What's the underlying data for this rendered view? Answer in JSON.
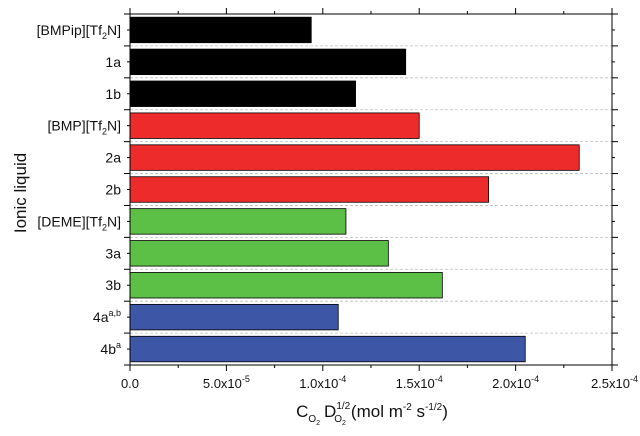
{
  "chart_data": {
    "type": "bar",
    "orientation": "horizontal",
    "categories": [
      {
        "base": "[BMPip][Tf",
        "sub": "2",
        "rest": "N]",
        "sup": ""
      },
      {
        "base": "1a",
        "sub": "",
        "rest": "",
        "sup": ""
      },
      {
        "base": "1b",
        "sub": "",
        "rest": "",
        "sup": ""
      },
      {
        "base": "[BMP][Tf",
        "sub": "2",
        "rest": "N]",
        "sup": ""
      },
      {
        "base": "2a",
        "sub": "",
        "rest": "",
        "sup": ""
      },
      {
        "base": "2b",
        "sub": "",
        "rest": "",
        "sup": ""
      },
      {
        "base": "[DEME][Tf",
        "sub": "2",
        "rest": "N]",
        "sup": ""
      },
      {
        "base": "3a",
        "sub": "",
        "rest": "",
        "sup": ""
      },
      {
        "base": "3b",
        "sub": "",
        "rest": "",
        "sup": ""
      },
      {
        "base": "4a",
        "sub": "",
        "rest": "",
        "sup": "a,b"
      },
      {
        "base": "4b",
        "sub": "",
        "rest": "",
        "sup": "a"
      }
    ],
    "values": [
      9.4e-05,
      0.000143,
      0.000117,
      0.00015,
      0.000233,
      0.000186,
      0.000112,
      0.000134,
      0.000162,
      0.000108,
      0.000205
    ],
    "bar_colors": [
      "#000000",
      "#000000",
      "#000000",
      "#ee2b2b",
      "#ee2b2b",
      "#ee2b2b",
      "#5cbf46",
      "#5cbf46",
      "#5cbf46",
      "#3d56a6",
      "#3d56a6"
    ],
    "ylabel": "Ionic liquid",
    "xlabel": {
      "c": "C",
      "c_sub": "O",
      "c_subsub": "2",
      "d": "D",
      "d_sub": "O",
      "d_subsub": "2",
      "d_sup": "1/2",
      "units": "(mol m",
      "m_exp": "-2",
      "s": " s",
      "s_exp": "-1/2",
      "close": ")"
    },
    "xlim": [
      0,
      0.00025
    ],
    "xticks": [
      {
        "value": 0,
        "label": "0.0",
        "exp": ""
      },
      {
        "value": 5e-05,
        "label": "5.0x10",
        "exp": "-5"
      },
      {
        "value": 0.0001,
        "label": "1.0x10",
        "exp": "-4"
      },
      {
        "value": 0.00015,
        "label": "1.5x10",
        "exp": "-4"
      },
      {
        "value": 0.0002,
        "label": "2.0x10",
        "exp": "-4"
      },
      {
        "value": 0.00025,
        "label": "2.5x10",
        "exp": "-4"
      }
    ],
    "grid": "horizontal-dashed",
    "legend": "none"
  }
}
